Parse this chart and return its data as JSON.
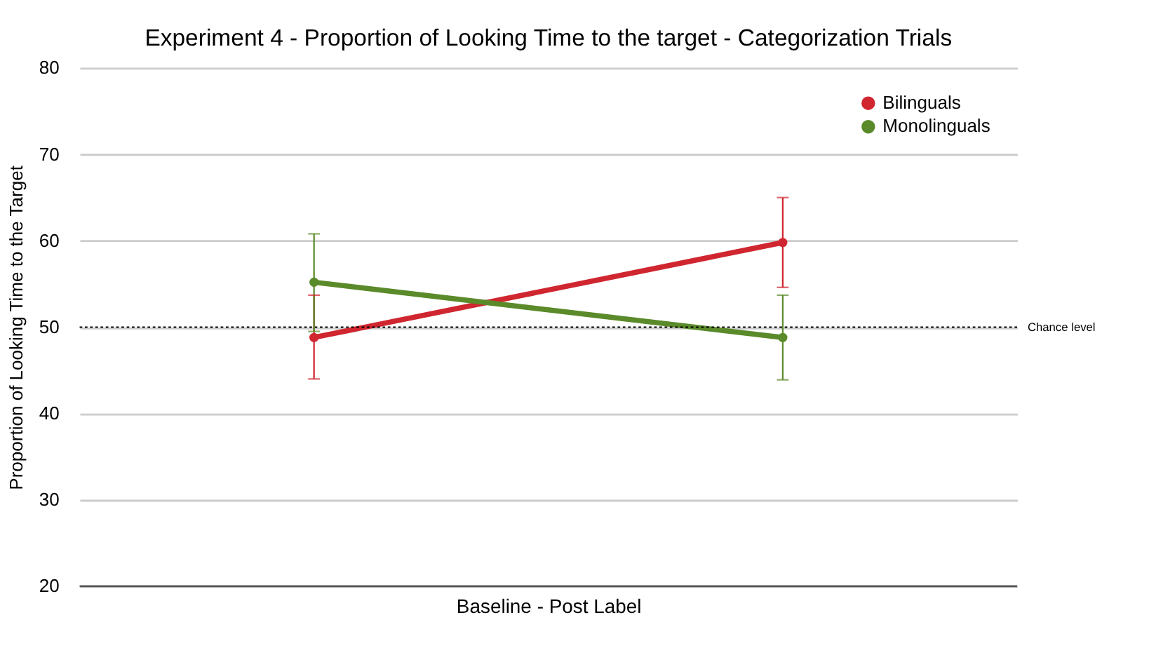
{
  "chart_data": {
    "type": "line",
    "title": "Experiment 4 -  Proportion of Looking Time to the target - Categorization Trials",
    "xlabel": "Baseline - Post Label",
    "ylabel": "Proportion of Looking Time to the Target",
    "categories": [
      null,
      null
    ],
    "series": [
      {
        "name": "Bilinguals",
        "color": "#d0262f",
        "values": [
          48.8,
          59.8
        ],
        "errors": [
          [
            44.0,
            53.7
          ],
          [
            54.6,
            65.0
          ]
        ]
      },
      {
        "name": "Monolinguals",
        "color": "#5a8a2a",
        "values": [
          55.2,
          48.8
        ],
        "errors": [
          [
            49.5,
            60.8
          ],
          [
            43.9,
            53.7
          ]
        ]
      }
    ],
    "ylim": [
      20,
      80
    ],
    "yticks": [
      20,
      30,
      40,
      50,
      60,
      70,
      80
    ],
    "grid": "y",
    "legend": "top right",
    "marker": "circle",
    "line_style": "solid",
    "tick_labels": "y",
    "ref_lines": [
      {
        "axis": "y",
        "value": 50,
        "label": "Chance level",
        "color": "#000000",
        "line_style": "dotted"
      }
    ]
  }
}
